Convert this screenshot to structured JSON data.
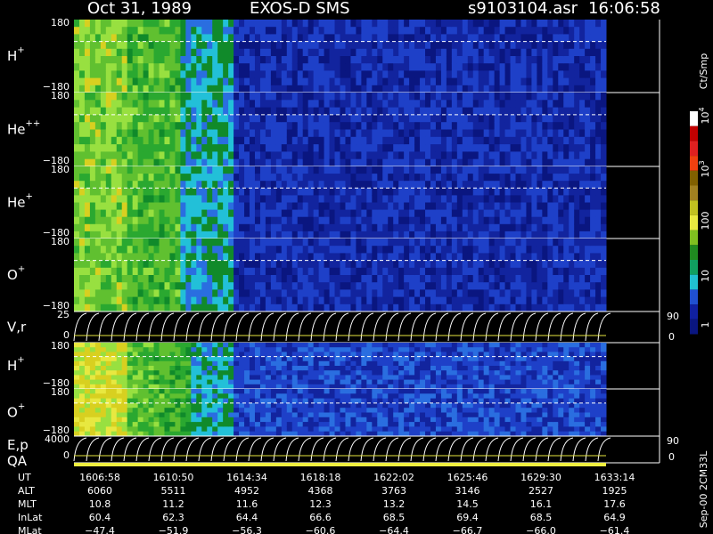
{
  "header": {
    "date": "Oct 31, 1989",
    "instrument": "EXOS-D SMS",
    "file": "s9103104.asr",
    "time": "16:06:58"
  },
  "panels": [
    {
      "name": "H",
      "charge": "+",
      "top": "180",
      "bottom": "−180"
    },
    {
      "name": "He",
      "charge": "++",
      "top": "180",
      "bottom": "−180"
    },
    {
      "name": "He",
      "charge": "+",
      "top": "180",
      "bottom": "−180"
    },
    {
      "name": "O",
      "charge": "+",
      "top": "180",
      "bottom": "−180"
    },
    {
      "name": "V,r",
      "top": "25",
      "bottom": "0",
      "right_top": "90",
      "right_bottom": "0"
    },
    {
      "name": "H",
      "charge": "+",
      "top": "180",
      "bottom": "−180"
    },
    {
      "name": "O",
      "charge": "+",
      "top": "180",
      "bottom": "−180"
    },
    {
      "name": "E,p",
      "top": "4000",
      "bottom": "0",
      "right_top": "90",
      "right_bottom": "0"
    },
    {
      "name": "QA"
    }
  ],
  "colorbar": {
    "title": "Ct/Smp",
    "labels": [
      {
        "text": "10",
        "exp": "4"
      },
      {
        "text": "10",
        "exp": "3"
      },
      {
        "text": "100"
      },
      {
        "text": "10"
      },
      {
        "text": "1"
      }
    ]
  },
  "footer": {
    "rows": [
      {
        "label": "UT",
        "values": [
          "1606:58",
          "1610:50",
          "1614:34",
          "1618:18",
          "1622:02",
          "1625:46",
          "1629:30",
          "1633:14"
        ]
      },
      {
        "label": "ALT",
        "values": [
          "6060",
          "5511",
          "4952",
          "4368",
          "3763",
          "3146",
          "2527",
          "1925"
        ]
      },
      {
        "label": "MLT",
        "values": [
          "10.8",
          "11.2",
          "11.6",
          "12.3",
          "13.2",
          "14.5",
          "16.1",
          "17.6"
        ]
      },
      {
        "label": "InLat",
        "values": [
          "60.4",
          "62.3",
          "64.4",
          "66.6",
          "68.5",
          "69.4",
          "68.5",
          "64.9"
        ]
      },
      {
        "label": "MLat",
        "values": [
          "−47.4",
          "−51.9",
          "−56.3",
          "−60.6",
          "−64.4",
          "−66.7",
          "−66.0",
          "−61.4"
        ]
      }
    ]
  },
  "side_note": "Sep-00 2CM33L"
}
